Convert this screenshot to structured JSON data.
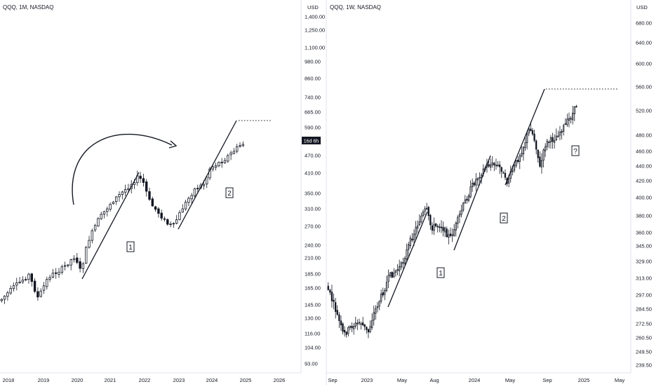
{
  "charts": [
    {
      "symbol_title": "QQQ, 1M, NASDAQ",
      "currency_label": "USD",
      "countdown_badge": "16d 6h",
      "wave_labels": [
        "1",
        "2"
      ],
      "time_labels": [
        "2018",
        "2019",
        "2020",
        "2021",
        "2022",
        "2023",
        "2024",
        "2025",
        "2026"
      ],
      "price_labels": [
        "93.00",
        "104.00",
        "116.00",
        "130.00",
        "145.00",
        "165.00",
        "185.00",
        "210.00",
        "240.00",
        "270.00",
        "310.00",
        "350.00",
        "410.00",
        "470.00",
        "590.00",
        "665.00",
        "740.00",
        "860.00",
        "980.00",
        "1,100.00",
        "1,250.00",
        "1,400.00"
      ]
    },
    {
      "symbol_title": "QQQ, 1W, NASDAQ",
      "currency_label": "USD",
      "wave_labels": [
        "1",
        "2",
        "?"
      ],
      "time_labels": [
        "Sep",
        "2023",
        "May",
        "Aug",
        "2024",
        "May",
        "Sep",
        "2025",
        "May"
      ],
      "price_labels": [
        "239.50",
        "249.50",
        "260.50",
        "272.50",
        "284.50",
        "297.00",
        "313.00",
        "329.00",
        "345.00",
        "360.00",
        "380.00",
        "400.00",
        "420.00",
        "440.00",
        "460.00",
        "480.00",
        "520.00",
        "560.00",
        "600.00",
        "640.00",
        "680.00"
      ]
    }
  ],
  "chart_data": [
    {
      "type": "candlestick",
      "symbol": "QQQ",
      "interval": "1M",
      "exchange": "NASDAQ",
      "y_scale": "log",
      "ylim": [
        93,
        1400
      ],
      "x_range": [
        "2017-11",
        "2026-03"
      ],
      "approx_closes": [
        [
          "2018-01",
          160
        ],
        [
          "2018-07",
          178
        ],
        [
          "2018-12",
          150
        ],
        [
          "2019-06",
          186
        ],
        [
          "2019-12",
          212
        ],
        [
          "2020-03",
          185
        ],
        [
          "2020-08",
          295
        ],
        [
          "2020-12",
          313
        ],
        [
          "2021-06",
          350
        ],
        [
          "2021-11",
          398
        ],
        [
          "2022-06",
          280
        ],
        [
          "2022-12",
          266
        ],
        [
          "2023-07",
          383
        ],
        [
          "2023-12",
          409
        ],
        [
          "2024-06",
          479
        ],
        [
          "2024-11",
          509
        ]
      ],
      "projection_level": 630
    },
    {
      "type": "candlestick",
      "symbol": "QQQ",
      "interval": "1W",
      "exchange": "NASDAQ",
      "y_scale": "log",
      "ylim": [
        239.5,
        680
      ],
      "x_range": [
        "2022-08",
        "2025-05"
      ],
      "approx_closes": [
        [
          "2022-08",
          310
        ],
        [
          "2022-10",
          265
        ],
        [
          "2022-12",
          268
        ],
        [
          "2023-01",
          280
        ],
        [
          "2023-04",
          320
        ],
        [
          "2023-07",
          385
        ],
        [
          "2023-10",
          345
        ],
        [
          "2023-12",
          410
        ],
        [
          "2024-03",
          445
        ],
        [
          "2024-04",
          418
        ],
        [
          "2024-07",
          500
        ],
        [
          "2024-08",
          433
        ],
        [
          "2024-10",
          490
        ],
        [
          "2024-12",
          530
        ]
      ],
      "projection_level": 560
    }
  ]
}
